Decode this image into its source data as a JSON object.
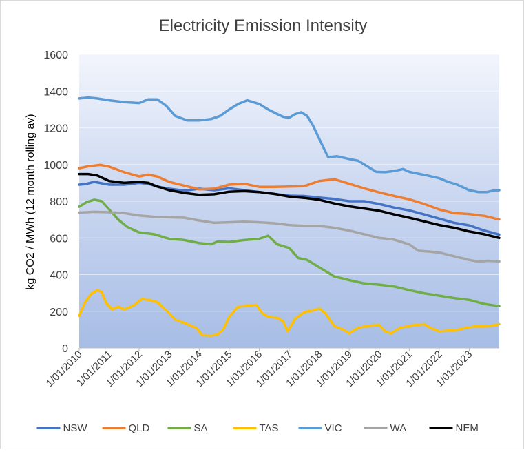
{
  "chart_data": {
    "type": "line",
    "title": "Electricity Emission Intensity",
    "xlabel": "",
    "ylabel": "kg CO2 / MWh (12 month rolling av)",
    "ylim": [
      0,
      1600
    ],
    "yticks": [
      "0",
      "200",
      "400",
      "600",
      "800",
      "1000",
      "1200",
      "1400",
      "1600"
    ],
    "xlim": [
      2010.0,
      2024.0
    ],
    "xtick_labels": [
      "1/01/2010",
      "1/01/2011",
      "1/01/2012",
      "1/01/2013",
      "1/01/2014",
      "1/01/2015",
      "1/01/2016",
      "1/01/2017",
      "1/01/2018",
      "1/01/2019",
      "1/01/2020",
      "1/01/2021",
      "1/01/2022",
      "1/01/2023"
    ],
    "legend_position": "bottom",
    "series": [
      {
        "name": "NSW",
        "color": "#4472C4",
        "x": [
          2010.0,
          2010.2,
          2010.5,
          2011.0,
          2011.5,
          2012.0,
          2012.3,
          2012.6,
          2013.0,
          2013.5,
          2014.0,
          2014.5,
          2015.0,
          2015.5,
          2016.0,
          2016.5,
          2017.0,
          2017.5,
          2018.0,
          2018.5,
          2019.0,
          2019.5,
          2020.0,
          2020.5,
          2021.0,
          2021.5,
          2022.0,
          2022.5,
          2023.0,
          2023.5,
          2024.0
        ],
        "y": [
          890,
          893,
          905,
          890,
          890,
          900,
          895,
          880,
          868,
          858,
          868,
          860,
          870,
          860,
          850,
          840,
          830,
          828,
          820,
          812,
          800,
          800,
          785,
          765,
          750,
          728,
          705,
          682,
          668,
          640,
          618
        ]
      },
      {
        "name": "QLD",
        "color": "#ED7D31",
        "x": [
          2010.0,
          2010.3,
          2010.7,
          2011.0,
          2011.5,
          2012.0,
          2012.3,
          2012.6,
          2013.0,
          2013.5,
          2014.0,
          2014.5,
          2015.0,
          2015.5,
          2016.0,
          2016.5,
          2017.0,
          2017.5,
          2018.0,
          2018.5,
          2019.0,
          2019.5,
          2020.0,
          2020.5,
          2021.0,
          2021.5,
          2022.0,
          2022.5,
          2023.0,
          2023.5,
          2024.0
        ],
        "y": [
          980,
          990,
          998,
          988,
          958,
          935,
          945,
          935,
          905,
          885,
          865,
          868,
          890,
          895,
          878,
          878,
          880,
          882,
          910,
          920,
          895,
          870,
          848,
          828,
          810,
          785,
          755,
          735,
          730,
          720,
          700
        ]
      },
      {
        "name": "SA",
        "color": "#70AD47",
        "x": [
          2010.0,
          2010.25,
          2010.5,
          2010.75,
          2011.0,
          2011.3,
          2011.6,
          2012.0,
          2012.5,
          2013.0,
          2013.5,
          2014.0,
          2014.4,
          2014.6,
          2015.0,
          2015.5,
          2016.0,
          2016.3,
          2016.6,
          2017.0,
          2017.3,
          2017.6,
          2018.0,
          2018.5,
          2019.0,
          2019.5,
          2020.0,
          2020.5,
          2021.0,
          2021.5,
          2022.0,
          2022.5,
          2023.0,
          2023.5,
          2024.0
        ],
        "y": [
          770,
          795,
          808,
          800,
          755,
          700,
          660,
          630,
          620,
          595,
          588,
          572,
          565,
          580,
          578,
          588,
          595,
          612,
          565,
          545,
          490,
          480,
          440,
          390,
          370,
          352,
          345,
          335,
          315,
          298,
          285,
          272,
          262,
          240,
          228
        ]
      },
      {
        "name": "TAS",
        "color": "#FFC000",
        "x": [
          2010.0,
          2010.2,
          2010.4,
          2010.6,
          2010.75,
          2010.9,
          2011.1,
          2011.3,
          2011.5,
          2011.8,
          2012.1,
          2012.3,
          2012.6,
          2012.9,
          2013.2,
          2013.6,
          2013.9,
          2014.1,
          2014.4,
          2014.6,
          2014.8,
          2015.0,
          2015.3,
          2015.6,
          2015.9,
          2016.1,
          2016.3,
          2016.6,
          2016.8,
          2016.95,
          2017.2,
          2017.5,
          2017.8,
          2018.0,
          2018.2,
          2018.5,
          2018.8,
          2019.0,
          2019.3,
          2019.6,
          2020.0,
          2020.2,
          2020.4,
          2020.7,
          2021.0,
          2021.2,
          2021.5,
          2021.7,
          2022.0,
          2022.3,
          2022.6,
          2022.9,
          2023.2,
          2023.5,
          2023.8,
          2024.0
        ],
        "y": [
          175,
          250,
          295,
          315,
          305,
          245,
          210,
          225,
          210,
          230,
          268,
          262,
          250,
          205,
          155,
          130,
          110,
          70,
          68,
          72,
          100,
          170,
          225,
          230,
          235,
          190,
          170,
          165,
          145,
          90,
          160,
          195,
          205,
          215,
          190,
          120,
          100,
          80,
          110,
          120,
          125,
          90,
          80,
          110,
          120,
          125,
          130,
          110,
          90,
          95,
          98,
          110,
          118,
          120,
          122,
          130
        ]
      },
      {
        "name": "VIC",
        "color": "#5B9BD5",
        "x": [
          2010.0,
          2010.3,
          2010.6,
          2011.0,
          2011.5,
          2012.0,
          2012.3,
          2012.6,
          2012.9,
          2013.2,
          2013.6,
          2014.0,
          2014.4,
          2014.7,
          2015.0,
          2015.3,
          2015.6,
          2016.0,
          2016.3,
          2016.6,
          2016.8,
          2017.0,
          2017.2,
          2017.4,
          2017.6,
          2017.8,
          2018.0,
          2018.3,
          2018.6,
          2019.0,
          2019.3,
          2019.6,
          2019.9,
          2020.2,
          2020.5,
          2020.8,
          2021.0,
          2021.3,
          2021.6,
          2022.0,
          2022.3,
          2022.6,
          2023.0,
          2023.3,
          2023.6,
          2023.8,
          2024.0
        ],
        "y": [
          1360,
          1365,
          1360,
          1350,
          1340,
          1335,
          1355,
          1355,
          1320,
          1265,
          1240,
          1240,
          1248,
          1265,
          1300,
          1330,
          1350,
          1330,
          1300,
          1275,
          1260,
          1255,
          1275,
          1285,
          1265,
          1210,
          1140,
          1040,
          1045,
          1030,
          1020,
          990,
          960,
          958,
          965,
          975,
          960,
          950,
          940,
          925,
          905,
          890,
          860,
          850,
          850,
          858,
          860
        ]
      },
      {
        "name": "WA",
        "color": "#A5A5A5",
        "x": [
          2010.0,
          2010.5,
          2011.0,
          2011.5,
          2012.0,
          2012.5,
          2013.0,
          2013.5,
          2014.0,
          2014.5,
          2015.0,
          2015.5,
          2016.0,
          2016.5,
          2017.0,
          2017.5,
          2018.0,
          2018.5,
          2019.0,
          2019.5,
          2020.0,
          2020.5,
          2021.0,
          2021.3,
          2021.7,
          2022.0,
          2022.5,
          2023.0,
          2023.3,
          2023.6,
          2024.0
        ],
        "y": [
          738,
          742,
          740,
          735,
          722,
          715,
          712,
          710,
          695,
          682,
          685,
          688,
          685,
          680,
          670,
          665,
          665,
          655,
          640,
          620,
          600,
          590,
          565,
          530,
          525,
          520,
          500,
          480,
          470,
          475,
          472
        ]
      },
      {
        "name": "NEM",
        "color": "#000000",
        "x": [
          2010.0,
          2010.3,
          2010.6,
          2011.0,
          2011.5,
          2012.0,
          2012.3,
          2012.6,
          2013.0,
          2013.5,
          2014.0,
          2014.5,
          2015.0,
          2015.5,
          2016.0,
          2016.5,
          2017.0,
          2017.5,
          2018.0,
          2018.5,
          2019.0,
          2019.5,
          2020.0,
          2020.5,
          2021.0,
          2021.5,
          2022.0,
          2022.5,
          2023.0,
          2023.5,
          2024.0
        ],
        "y": [
          948,
          948,
          940,
          910,
          900,
          905,
          900,
          880,
          860,
          845,
          835,
          838,
          852,
          855,
          850,
          840,
          825,
          818,
          808,
          788,
          772,
          760,
          748,
          728,
          710,
          690,
          670,
          655,
          635,
          620,
          600
        ]
      }
    ]
  }
}
